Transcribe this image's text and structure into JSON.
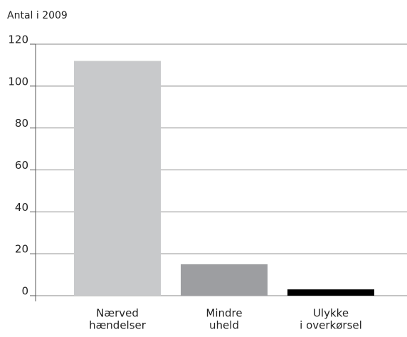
{
  "chart_data": {
    "type": "bar",
    "y_label": "Antal i 2009",
    "categories": [
      [
        "Nærved",
        "hændelser"
      ],
      [
        "Mindre",
        "uheld"
      ],
      [
        "Ulykke",
        "i overkørsel"
      ]
    ],
    "values": [
      112,
      15,
      3
    ],
    "colors": [
      "#c8c9cb",
      "#9d9ea1",
      "#000000"
    ],
    "ylim": [
      0,
      120
    ],
    "yticks": [
      0,
      20,
      40,
      60,
      80,
      100,
      120
    ],
    "grid": true
  }
}
